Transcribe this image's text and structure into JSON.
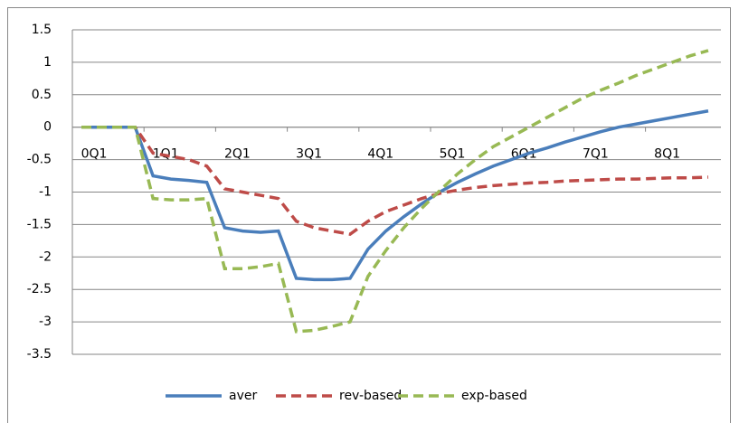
{
  "chart_data": {
    "type": "line",
    "categories": [
      "0Q1",
      null,
      null,
      null,
      "1Q1",
      null,
      null,
      null,
      "2Q1",
      null,
      null,
      null,
      "3Q1",
      null,
      null,
      null,
      "4Q1",
      null,
      null,
      null,
      "5Q1",
      null,
      null,
      null,
      "6Q1",
      null,
      null,
      null,
      "7Q1",
      null,
      null,
      null,
      "8Q1",
      null,
      null,
      null
    ],
    "series": [
      {
        "name": "aver",
        "color": "#4a7ebb",
        "dash": "solid",
        "values": [
          0,
          0,
          0,
          0,
          -0.75,
          -0.8,
          -0.82,
          -0.85,
          -1.55,
          -1.6,
          -1.62,
          -1.6,
          -2.33,
          -2.35,
          -2.35,
          -2.33,
          -1.88,
          -1.6,
          -1.38,
          -1.18,
          -1.0,
          -0.85,
          -0.72,
          -0.6,
          -0.5,
          -0.4,
          -0.32,
          -0.23,
          -0.15,
          -0.07,
          0,
          0.05,
          0.1,
          0.15,
          0.2,
          0.25
        ]
      },
      {
        "name": "rev-based",
        "color": "#be4b48",
        "dash": "dashed",
        "values": [
          0,
          0,
          0,
          0,
          -0.4,
          -0.45,
          -0.5,
          -0.6,
          -0.95,
          -1.0,
          -1.05,
          -1.1,
          -1.45,
          -1.55,
          -1.6,
          -1.65,
          -1.45,
          -1.3,
          -1.2,
          -1.1,
          -1.02,
          -0.97,
          -0.93,
          -0.9,
          -0.88,
          -0.86,
          -0.85,
          -0.83,
          -0.82,
          -0.81,
          -0.8,
          -0.8,
          -0.79,
          -0.78,
          -0.78,
          -0.77
        ]
      },
      {
        "name": "exp-based",
        "color": "#98b954",
        "dash": "dashed",
        "values": [
          0,
          0,
          0,
          0,
          -1.1,
          -1.12,
          -1.12,
          -1.1,
          -2.18,
          -2.18,
          -2.15,
          -2.1,
          -3.15,
          -3.13,
          -3.07,
          -3.0,
          -2.3,
          -1.9,
          -1.55,
          -1.25,
          -0.98,
          -0.72,
          -0.5,
          -0.3,
          -0.15,
          0,
          0.15,
          0.3,
          0.45,
          0.57,
          0.68,
          0.8,
          0.9,
          1.0,
          1.1,
          1.18
        ]
      }
    ],
    "ylim": [
      -3.5,
      1.5
    ],
    "yticks": [
      -3.5,
      -3,
      -2.5,
      -2,
      -1.5,
      -1,
      -0.5,
      0,
      0.5,
      1,
      1.5
    ],
    "grid": true,
    "legend": "bottom"
  }
}
